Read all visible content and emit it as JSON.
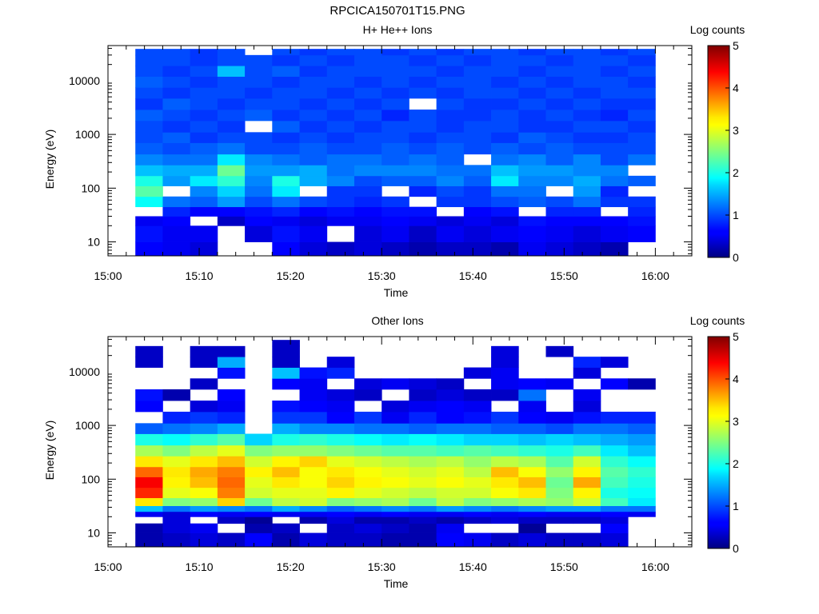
{
  "title": "RPCICA150701T15.PNG",
  "chart_data": [
    {
      "type": "heatmap",
      "title": "H+ He++ Ions",
      "xlabel": "Time",
      "ylabel": "Energy (eV)",
      "y_scale": "log",
      "ylim": [
        5.5,
        45000
      ],
      "xlim": [
        "15:00",
        "16:04"
      ],
      "x_ticks": [
        "15:00",
        "15:10",
        "15:20",
        "15:30",
        "15:40",
        "15:50",
        "16:00"
      ],
      "y_ticks": [
        "10",
        "100",
        "1000",
        "10000"
      ],
      "colorbar": {
        "label": "Log counts",
        "min": 0,
        "max": 5,
        "ticks": [
          "0",
          "1",
          "2",
          "3",
          "4",
          "5"
        ]
      },
      "time_bins": [
        "15:03",
        "15:06",
        "15:09",
        "15:12",
        "15:15",
        "15:18",
        "15:21",
        "15:24",
        "15:27",
        "15:30",
        "15:33",
        "15:36",
        "15:39",
        "15:42",
        "15:45",
        "15:48",
        "15:51",
        "15:54",
        "15:57"
      ],
      "rows": [
        {
          "e": [
            5.5,
            10
          ],
          "v": [
            0.6,
            0.5,
            0.4,
            null,
            null,
            0.6,
            0.4,
            0.3,
            0.4,
            0.3,
            0.2,
            0.3,
            0.3,
            0.2,
            0.5,
            0.4,
            0.3,
            0.2,
            null
          ]
        },
        {
          "e": [
            10,
            20
          ],
          "v": [
            0.7,
            0.5,
            0.5,
            null,
            0.4,
            0.7,
            0.5,
            null,
            0.4,
            0.5,
            0.3,
            0.5,
            0.4,
            0.5,
            0.6,
            0.5,
            0.4,
            0.5,
            0.6
          ]
        },
        {
          "e": [
            20,
            30
          ],
          "v": [
            0.5,
            0.6,
            null,
            0.3,
            0.6,
            0.5,
            0.4,
            0.5,
            0.5,
            0.6,
            0.5,
            0.4,
            0.5,
            0.4,
            0.7,
            0.6,
            0.6,
            0.6,
            0.7
          ]
        },
        {
          "e": [
            30,
            45
          ],
          "v": [
            null,
            0.8,
            0.6,
            0.6,
            0.7,
            0.8,
            0.6,
            0.7,
            0.6,
            0.7,
            0.7,
            null,
            0.6,
            0.7,
            null,
            0.8,
            0.8,
            null,
            0.8
          ]
        },
        {
          "e": [
            45,
            70
          ],
          "v": [
            1.9,
            1.2,
            1.1,
            1.4,
            1.0,
            1.2,
            1.0,
            0.9,
            0.8,
            0.9,
            null,
            0.9,
            0.9,
            1.0,
            1.1,
            1.0,
            1.2,
            0.9,
            0.9
          ]
        },
        {
          "e": [
            70,
            110
          ],
          "v": [
            2.3,
            null,
            1.3,
            1.7,
            1.2,
            1.8,
            null,
            0.9,
            0.9,
            null,
            0.8,
            1.0,
            0.9,
            1.2,
            1.2,
            null,
            1.4,
            0.8,
            null
          ]
        },
        {
          "e": [
            110,
            170
          ],
          "v": [
            2.0,
            1.4,
            1.8,
            2.1,
            1.3,
            2.0,
            1.5,
            1.3,
            1.0,
            1.1,
            1.1,
            1.3,
            1.1,
            1.8,
            1.3,
            1.3,
            1.5,
            1.2,
            1.1
          ]
        },
        {
          "e": [
            170,
            270
          ],
          "v": [
            1.6,
            1.5,
            1.5,
            2.4,
            1.4,
            1.4,
            1.5,
            1.2,
            1.3,
            1.3,
            1.3,
            1.2,
            1.2,
            1.6,
            1.4,
            1.4,
            1.3,
            1.3,
            null
          ]
        },
        {
          "e": [
            270,
            430
          ],
          "v": [
            1.3,
            1.2,
            1.2,
            1.8,
            1.3,
            1.2,
            1.1,
            1.2,
            1.2,
            1.1,
            1.2,
            1.1,
            null,
            1.2,
            1.3,
            1.1,
            1.3,
            1.0,
            1.2
          ]
        },
        {
          "e": [
            430,
            700
          ],
          "v": [
            1.1,
            1.0,
            1.1,
            1.2,
            1.0,
            1.0,
            1.1,
            1.0,
            1.0,
            1.1,
            1.0,
            1.1,
            1.0,
            1.1,
            1.0,
            1.1,
            1.0,
            1.0,
            1.0
          ]
        },
        {
          "e": [
            700,
            1100
          ],
          "v": [
            1.0,
            1.1,
            0.9,
            1.0,
            1.0,
            0.9,
            1.0,
            0.9,
            1.0,
            1.0,
            0.9,
            1.0,
            1.0,
            0.9,
            1.1,
            1.0,
            0.9,
            0.9,
            1.0
          ]
        },
        {
          "e": [
            1100,
            1800
          ],
          "v": [
            1.0,
            0.9,
            1.0,
            0.9,
            null,
            1.1,
            0.9,
            1.0,
            0.9,
            1.0,
            1.0,
            0.9,
            1.0,
            1.0,
            0.9,
            0.9,
            1.0,
            1.0,
            0.9
          ]
        },
        {
          "e": [
            1800,
            2900
          ],
          "v": [
            1.1,
            1.0,
            0.9,
            1.0,
            1.1,
            0.9,
            1.0,
            0.9,
            1.0,
            0.8,
            1.0,
            0.9,
            0.9,
            1.0,
            0.9,
            1.0,
            0.9,
            0.8,
            1.0
          ]
        },
        {
          "e": [
            2900,
            4700
          ],
          "v": [
            0.9,
            1.1,
            1.0,
            0.9,
            1.0,
            1.0,
            0.9,
            1.0,
            0.9,
            1.0,
            null,
            1.0,
            0.9,
            0.9,
            1.0,
            0.9,
            1.0,
            0.9,
            0.9
          ]
        },
        {
          "e": [
            4700,
            7500
          ],
          "v": [
            1.0,
            0.9,
            1.0,
            1.0,
            0.9,
            1.0,
            1.0,
            0.9,
            1.0,
            0.9,
            1.0,
            0.9,
            1.0,
            1.0,
            0.9,
            1.0,
            0.9,
            1.0,
            1.0
          ]
        },
        {
          "e": [
            7500,
            12000
          ],
          "v": [
            1.1,
            1.0,
            0.9,
            1.0,
            1.0,
            0.9,
            1.0,
            1.0,
            0.9,
            1.0,
            0.9,
            1.0,
            1.0,
            0.9,
            1.0,
            0.9,
            1.0,
            1.0,
            0.9
          ]
        },
        {
          "e": [
            12000,
            19000
          ],
          "v": [
            1.0,
            0.9,
            1.0,
            1.6,
            1.0,
            1.1,
            0.9,
            1.0,
            1.0,
            1.0,
            1.0,
            0.9,
            1.0,
            1.0,
            0.9,
            1.0,
            1.0,
            0.9,
            1.0
          ]
        },
        {
          "e": [
            19000,
            30000
          ],
          "v": [
            1.0,
            1.0,
            0.9,
            1.0,
            1.0,
            0.9,
            1.0,
            0.9,
            1.0,
            1.0,
            0.9,
            1.0,
            0.9,
            1.0,
            1.0,
            0.9,
            1.0,
            1.0,
            0.9
          ]
        },
        {
          "e": [
            30000,
            39000
          ],
          "v": [
            1.0,
            1.0,
            0.9,
            1.0,
            null,
            1.0,
            0.9,
            1.0,
            1.0,
            0.9,
            1.0,
            0.9,
            1.0,
            1.0,
            0.9,
            1.0,
            1.0,
            0.9,
            1.0
          ]
        }
      ]
    },
    {
      "type": "heatmap",
      "title": "Other Ions",
      "xlabel": "Time",
      "ylabel": "Energy (eV)",
      "y_scale": "log",
      "ylim": [
        5.5,
        45000
      ],
      "xlim": [
        "15:00",
        "16:04"
      ],
      "x_ticks": [
        "15:00",
        "15:10",
        "15:20",
        "15:30",
        "15:40",
        "15:50",
        "16:00"
      ],
      "y_ticks": [
        "10",
        "100",
        "1000",
        "10000"
      ],
      "colorbar": {
        "label": "Log counts",
        "min": 0,
        "max": 5,
        "ticks": [
          "0",
          "1",
          "2",
          "3",
          "4",
          "5"
        ]
      },
      "time_bins": [
        "15:03",
        "15:06",
        "15:09",
        "15:12",
        "15:15",
        "15:18",
        "15:21",
        "15:24",
        "15:27",
        "15:30",
        "15:33",
        "15:36",
        "15:39",
        "15:42",
        "15:45",
        "15:48",
        "15:51",
        "15:54",
        "15:57"
      ],
      "rows": [
        {
          "e": [
            5.5,
            10
          ],
          "v": [
            0.2,
            0.3,
            0.4,
            0.3,
            0.6,
            0.2,
            0.4,
            0.3,
            0.3,
            0.2,
            0.2,
            0.6,
            0.5,
            0.3,
            0.4,
            0.3,
            0.3,
            0.4,
            null
          ]
        },
        {
          "e": [
            10,
            15
          ],
          "v": [
            0.2,
            0.4,
            0.5,
            null,
            0.2,
            0.3,
            null,
            0.3,
            0.4,
            0.3,
            0.2,
            0.5,
            null,
            null,
            0.1,
            null,
            null,
            0.6,
            null
          ]
        },
        {
          "e": [
            15,
            20
          ],
          "v": [
            null,
            0.4,
            null,
            0.3,
            0.1,
            null,
            0.2,
            0.4,
            0.2,
            0.2,
            0.3,
            0.2,
            0.3,
            0.4,
            0.3,
            0.3,
            0.3,
            0.4,
            null
          ]
        },
        {
          "e": [
            20,
            25
          ],
          "v": [
            0.5,
            0.4,
            0.6,
            0.5,
            0.6,
            0.5,
            0.5,
            0.6,
            0.5,
            0.6,
            0.5,
            0.5,
            0.6,
            0.5,
            0.6,
            0.5,
            0.5,
            0.6,
            0.5
          ]
        },
        {
          "e": [
            25,
            32
          ],
          "v": [
            1.6,
            1.2,
            1.4,
            1.3,
            1.2,
            1.5,
            1.3,
            1.1,
            1.2,
            1.3,
            1.2,
            1.4,
            1.3,
            1.2,
            1.3,
            1.4,
            1.4,
            1.2,
            1.2
          ]
        },
        {
          "e": [
            32,
            45
          ],
          "v": [
            3.3,
            2.5,
            2.6,
            3.4,
            2.4,
            2.8,
            2.9,
            2.5,
            2.6,
            2.7,
            2.4,
            2.8,
            2.5,
            2.6,
            2.7,
            2.6,
            2.9,
            2.2,
            1.8
          ]
        },
        {
          "e": [
            45,
            70
          ],
          "v": [
            4.2,
            3.0,
            3.1,
            3.8,
            2.9,
            3.0,
            3.0,
            3.2,
            3.0,
            2.9,
            2.8,
            2.9,
            2.9,
            3.1,
            3.3,
            2.5,
            3.2,
            2.0,
            1.9
          ]
        },
        {
          "e": [
            70,
            110
          ],
          "v": [
            4.4,
            3.2,
            3.5,
            3.9,
            3.0,
            3.3,
            3.1,
            3.4,
            3.2,
            3.1,
            3.0,
            3.1,
            3.0,
            3.3,
            3.5,
            2.4,
            3.6,
            2.2,
            2.0
          ]
        },
        {
          "e": [
            110,
            170
          ],
          "v": [
            3.9,
            3.3,
            3.6,
            3.8,
            3.2,
            3.5,
            3.1,
            3.3,
            3.1,
            3.0,
            2.9,
            3.0,
            2.8,
            3.5,
            3.1,
            2.6,
            3.2,
            2.3,
            2.1
          ]
        },
        {
          "e": [
            170,
            270
          ],
          "v": [
            3.3,
            3.0,
            3.3,
            3.5,
            2.9,
            3.2,
            3.4,
            3.0,
            2.9,
            2.8,
            2.7,
            2.8,
            2.6,
            2.8,
            2.7,
            2.3,
            2.9,
            2.1,
            1.9
          ]
        },
        {
          "e": [
            270,
            430
          ],
          "v": [
            2.7,
            2.5,
            2.8,
            3.0,
            2.5,
            2.6,
            2.6,
            2.5,
            2.4,
            2.3,
            2.3,
            2.2,
            2.3,
            2.2,
            2.1,
            2.0,
            2.2,
            1.8,
            1.6
          ]
        },
        {
          "e": [
            430,
            700
          ],
          "v": [
            2.0,
            1.9,
            2.1,
            2.3,
            1.7,
            2.0,
            2.1,
            2.0,
            1.9,
            1.8,
            1.9,
            1.8,
            1.7,
            1.7,
            1.6,
            1.7,
            1.6,
            1.5,
            1.4
          ]
        },
        {
          "e": [
            700,
            1100
          ],
          "v": [
            1.1,
            1.2,
            1.3,
            1.5,
            null,
            1.5,
            1.3,
            1.3,
            1.2,
            1.2,
            1.1,
            1.2,
            1.2,
            1.1,
            1.1,
            1.0,
            1.2,
            1.2,
            1.1
          ]
        },
        {
          "e": [
            1100,
            1800
          ],
          "v": [
            null,
            0.8,
            0.9,
            0.8,
            null,
            0.9,
            0.9,
            0.6,
            0.9,
            0.5,
            0.8,
            0.6,
            0.7,
            0.9,
            0.6,
            0.5,
            0.7,
            0.8,
            0.8
          ]
        },
        {
          "e": [
            1800,
            2900
          ],
          "v": [
            0.6,
            null,
            0.4,
            0.5,
            null,
            0.7,
            0.6,
            0.5,
            null,
            0.4,
            0.5,
            0.6,
            0.5,
            null,
            0.5,
            null,
            0.4,
            null,
            null
          ]
        },
        {
          "e": [
            2900,
            4700
          ],
          "v": [
            0.7,
            0.2,
            null,
            0.6,
            null,
            null,
            0.5,
            0.4,
            0.3,
            null,
            0.3,
            0.4,
            0.3,
            0.3,
            1.2,
            null,
            0.5,
            null,
            null
          ]
        },
        {
          "e": [
            4700,
            7500
          ],
          "v": [
            null,
            null,
            0.3,
            null,
            null,
            0.6,
            0.5,
            null,
            0.4,
            0.5,
            0.4,
            0.3,
            null,
            0.5,
            0.6,
            0.5,
            null,
            0.6,
            0.2
          ]
        },
        {
          "e": [
            7500,
            12000
          ],
          "v": [
            null,
            null,
            null,
            0.7,
            null,
            1.6,
            0.7,
            0.8,
            null,
            null,
            null,
            null,
            0.4,
            0.5,
            null,
            null,
            0.4,
            null,
            null
          ]
        },
        {
          "e": [
            12000,
            19000
          ],
          "v": [
            0.3,
            null,
            0.3,
            1.5,
            null,
            0.3,
            null,
            0.4,
            null,
            null,
            null,
            null,
            null,
            0.4,
            null,
            null,
            0.8,
            0.4,
            null
          ]
        },
        {
          "e": [
            19000,
            30000
          ],
          "v": [
            0.3,
            null,
            0.3,
            0.3,
            null,
            0.3,
            null,
            null,
            null,
            null,
            null,
            null,
            null,
            0.4,
            null,
            0.3,
            null,
            null,
            null
          ]
        },
        {
          "e": [
            30000,
            39000
          ],
          "v": [
            null,
            null,
            null,
            null,
            null,
            0.3,
            null,
            null,
            null,
            null,
            null,
            null,
            null,
            null,
            null,
            null,
            null,
            null,
            null
          ]
        }
      ]
    }
  ]
}
